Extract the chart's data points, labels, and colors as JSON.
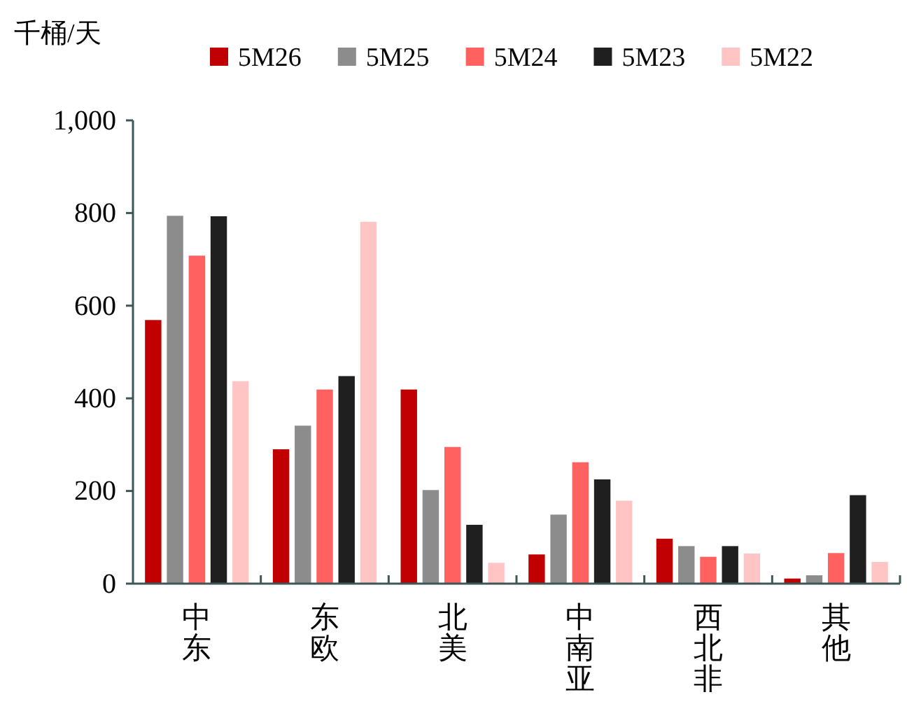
{
  "chart_data": {
    "type": "bar",
    "ylabel": "千桶/天",
    "categories": [
      "中东",
      "东欧",
      "北美",
      "中南亚",
      "西北非",
      "其他"
    ],
    "series": [
      {
        "name": "5M26",
        "color": "#c00000",
        "values": [
          569,
          290,
          419,
          63,
          97,
          11
        ]
      },
      {
        "name": "5M25",
        "color": "#8c8c8c",
        "values": [
          794,
          341,
          202,
          149,
          81,
          18
        ]
      },
      {
        "name": "5M24",
        "color": "#ff6161",
        "values": [
          708,
          419,
          295,
          262,
          58,
          66
        ]
      },
      {
        "name": "5M23",
        "color": "#1f1f1f",
        "values": [
          793,
          448,
          127,
          225,
          81,
          191
        ]
      },
      {
        "name": "5M22",
        "color": "#ffc5c5",
        "values": [
          437,
          781,
          45,
          179,
          65,
          47
        ]
      }
    ],
    "ylim": [
      0,
      1000
    ],
    "yticks": [
      0,
      200,
      400,
      600,
      800,
      {
        "value": 1000,
        "label": "1,000"
      }
    ],
    "grid": false,
    "legend": "top"
  }
}
